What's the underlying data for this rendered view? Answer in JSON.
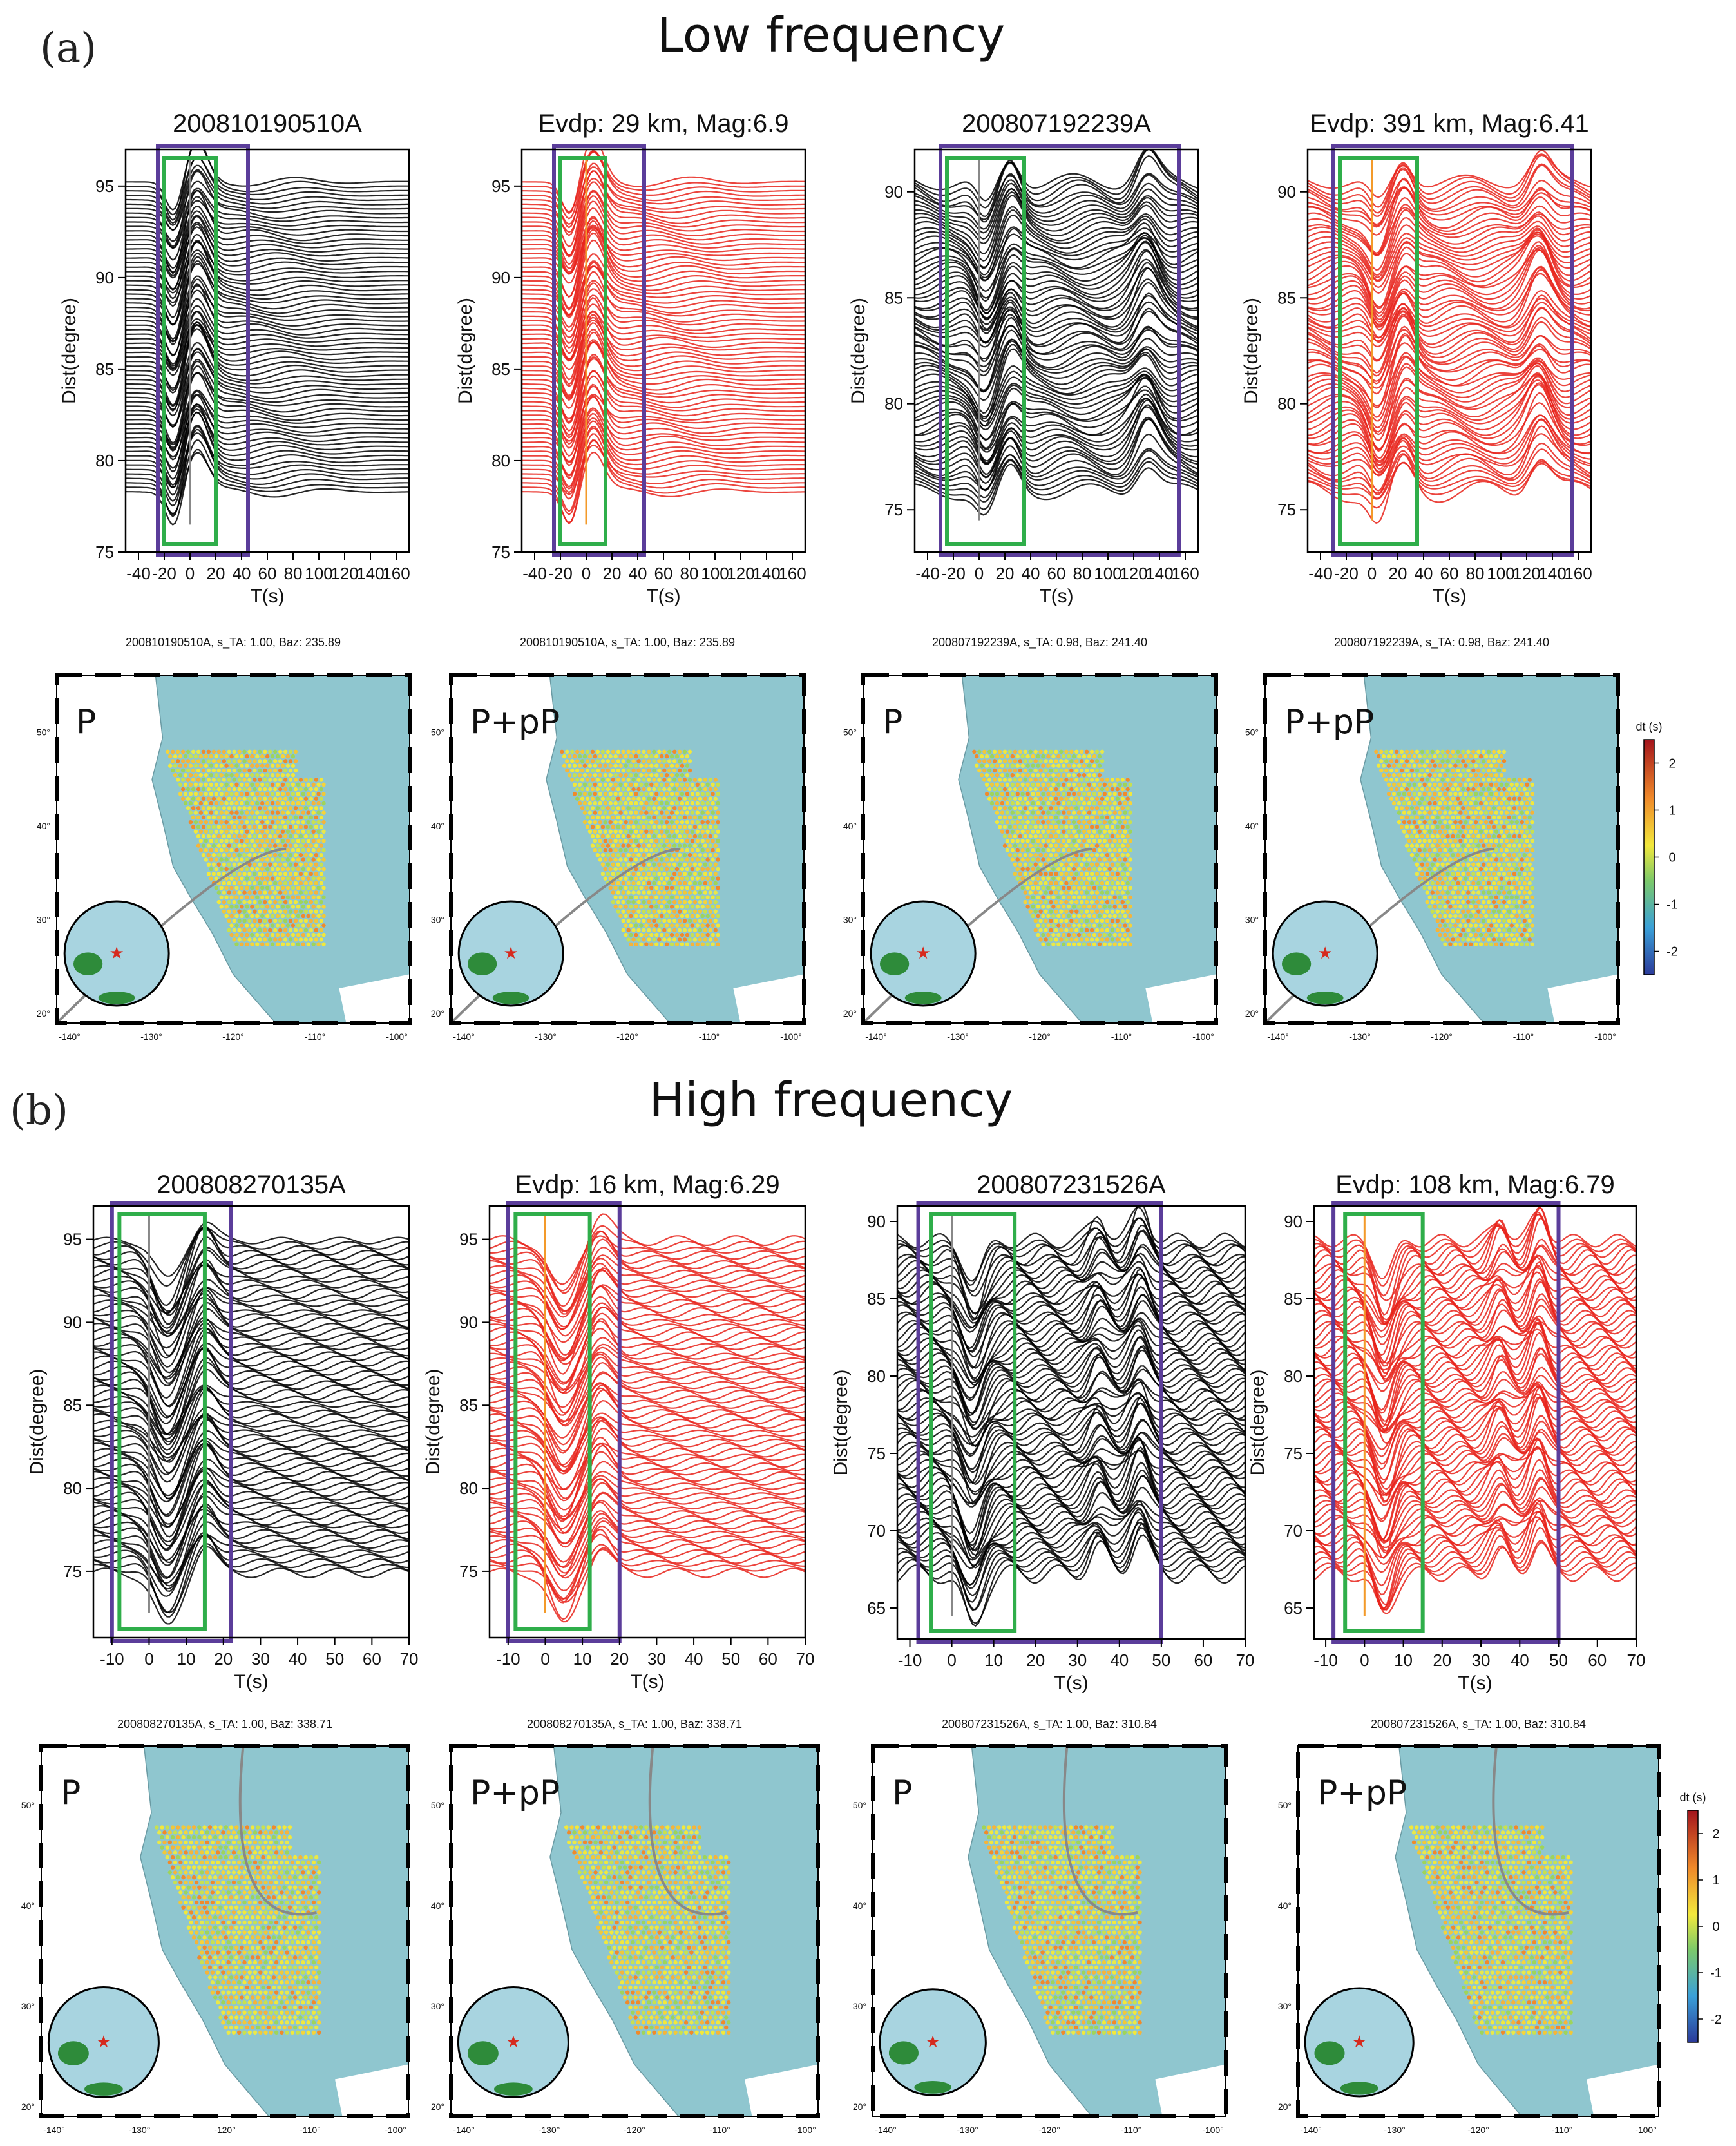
{
  "sections": [
    {
      "label": "(a)",
      "title": "Low frequency",
      "waveform_titles": [
        "200810190510A",
        "Evdp: 29 km, Mag:6.9",
        "200807192239A",
        "Evdp: 391 km, Mag:6.41"
      ],
      "map_titles": [
        "200810190510A, s_TA: 1.00, Baz: 235.89",
        "200810190510A, s_TA: 1.00, Baz: 235.89",
        "200807192239A, s_TA: 0.98, Baz: 241.40",
        "200807192239A, s_TA: 0.98, Baz: 241.40"
      ],
      "map_phase_labels": [
        "P",
        "P+pP",
        "P",
        "P+pP"
      ]
    },
    {
      "label": "(b)",
      "title": "High frequency",
      "waveform_titles": [
        "200808270135A",
        "Evdp: 16 km, Mag:6.29",
        "200807231526A",
        "Evdp: 108 km, Mag:6.79"
      ],
      "map_titles": [
        "200808270135A, s_TA: 1.00, Baz: 338.71",
        "200808270135A, s_TA: 1.00, Baz: 338.71",
        "200807231526A, s_TA: 1.00, Baz: 310.84",
        "200807231526A, s_TA: 1.00, Baz: 310.84"
      ],
      "map_phase_labels": [
        "P",
        "P+pP",
        "P",
        "P+pP"
      ]
    }
  ],
  "colors": {
    "observed_trace": "#000000",
    "synthetic_trace": "#e8231b",
    "wide_window_box": "#5b3d9a",
    "narrow_window_box": "#2fae4a",
    "ocean": "#8fc6cf",
    "land_inset": "#2e8b3a",
    "globe_ocean": "#a8d4e0"
  },
  "chart_data": [
    {
      "type": "line",
      "panel": "a-1",
      "title": "200810190510A",
      "xlabel": "T(s)",
      "ylabel": "Dist(degree)",
      "xlim": [
        -50,
        170
      ],
      "ylim": [
        75,
        97
      ],
      "xticks": [
        -40,
        -20,
        0,
        20,
        40,
        60,
        80,
        100,
        120,
        140,
        160
      ],
      "yticks": [
        75,
        80,
        85,
        90,
        95
      ],
      "trace_color": "black",
      "windows": {
        "wide": [
          -25,
          45
        ],
        "narrow": [
          -20,
          20
        ]
      }
    },
    {
      "type": "line",
      "panel": "a-2",
      "title": "Evdp: 29 km, Mag:6.9",
      "xlabel": "T(s)",
      "ylabel": "Dist(degree)",
      "xlim": [
        -50,
        170
      ],
      "ylim": [
        75,
        97
      ],
      "xticks": [
        -40,
        -20,
        0,
        20,
        40,
        60,
        80,
        100,
        120,
        140,
        160
      ],
      "yticks": [
        75,
        80,
        85,
        90,
        95
      ],
      "trace_color": "red",
      "windows": {
        "wide": [
          -25,
          45
        ],
        "narrow": [
          -20,
          15
        ]
      }
    },
    {
      "type": "line",
      "panel": "a-3",
      "title": "200807192239A",
      "xlabel": "T(s)",
      "ylabel": "Dist(degree)",
      "xlim": [
        -50,
        170
      ],
      "ylim": [
        73,
        92
      ],
      "xticks": [
        -40,
        -20,
        0,
        20,
        40,
        60,
        80,
        100,
        120,
        140,
        160
      ],
      "yticks": [
        75,
        80,
        85,
        90
      ],
      "trace_color": "black",
      "windows": {
        "wide": [
          -30,
          155
        ],
        "narrow": [
          -25,
          35
        ]
      }
    },
    {
      "type": "line",
      "panel": "a-4",
      "title": "Evdp: 391 km, Mag:6.41",
      "xlabel": "T(s)",
      "ylabel": "Dist(degree)",
      "xlim": [
        -50,
        170
      ],
      "ylim": [
        73,
        92
      ],
      "xticks": [
        -40,
        -20,
        0,
        20,
        40,
        60,
        80,
        100,
        120,
        140,
        160
      ],
      "yticks": [
        75,
        80,
        85,
        90
      ],
      "trace_color": "red",
      "windows": {
        "wide": [
          -30,
          155
        ],
        "narrow": [
          -25,
          35
        ]
      }
    },
    {
      "type": "line",
      "panel": "b-1",
      "title": "200808270135A",
      "xlabel": "T(s)",
      "ylabel": "Dist(degree)",
      "xlim": [
        -15,
        70
      ],
      "ylim": [
        71,
        97
      ],
      "xticks": [
        -10,
        0,
        10,
        20,
        30,
        40,
        50,
        60,
        70
      ],
      "yticks": [
        75,
        80,
        85,
        90,
        95
      ],
      "trace_color": "black",
      "windows": {
        "wide": [
          -10,
          22
        ],
        "narrow": [
          -8,
          15
        ]
      }
    },
    {
      "type": "line",
      "panel": "b-2",
      "title": "Evdp: 16 km, Mag:6.29",
      "xlabel": "T(s)",
      "ylabel": "Dist(degree)",
      "xlim": [
        -15,
        70
      ],
      "ylim": [
        71,
        97
      ],
      "xticks": [
        -10,
        0,
        10,
        20,
        30,
        40,
        50,
        60,
        70
      ],
      "yticks": [
        75,
        80,
        85,
        90,
        95
      ],
      "trace_color": "red",
      "windows": {
        "wide": [
          -10,
          20
        ],
        "narrow": [
          -8,
          12
        ]
      }
    },
    {
      "type": "line",
      "panel": "b-3",
      "title": "200807231526A",
      "xlabel": "T(s)",
      "ylabel": "Dist(degree)",
      "xlim": [
        -13,
        70
      ],
      "ylim": [
        63,
        91
      ],
      "xticks": [
        -10,
        0,
        10,
        20,
        30,
        40,
        50,
        60,
        70
      ],
      "yticks": [
        65,
        70,
        75,
        80,
        85,
        90
      ],
      "trace_color": "black",
      "windows": {
        "wide": [
          -8,
          50
        ],
        "narrow": [
          -5,
          15
        ]
      }
    },
    {
      "type": "line",
      "panel": "b-4",
      "title": "Evdp: 108 km, Mag:6.79",
      "xlabel": "T(s)",
      "ylabel": "Dist(degree)",
      "xlim": [
        -13,
        70
      ],
      "ylim": [
        63,
        91
      ],
      "xticks": [
        -10,
        0,
        10,
        20,
        30,
        40,
        50,
        60,
        70
      ],
      "yticks": [
        65,
        70,
        75,
        80,
        85,
        90
      ],
      "trace_color": "red",
      "windows": {
        "wide": [
          -8,
          50
        ],
        "narrow": [
          -5,
          15
        ]
      }
    },
    {
      "type": "scatter",
      "panel": "map-row-a",
      "xticks": [
        "-140°",
        "-130°",
        "-120°",
        "-110°",
        "-100°"
      ],
      "yticks": [
        "20°",
        "30°",
        "40°",
        "50°"
      ],
      "colorbar": {
        "label": "dt (s)",
        "ticks": [
          2,
          1,
          0,
          -1,
          -2
        ],
        "range": [
          -2.5,
          2.5
        ]
      }
    },
    {
      "type": "scatter",
      "panel": "map-row-b",
      "xticks": [
        "-140°",
        "-130°",
        "-120°",
        "-110°",
        "-100°"
      ],
      "yticks": [
        "20°",
        "30°",
        "40°",
        "50°"
      ],
      "colorbar": {
        "label": "dt (s)",
        "ticks": [
          2,
          1,
          0,
          -1,
          -2
        ],
        "range": [
          -2.5,
          2.5
        ]
      }
    }
  ]
}
